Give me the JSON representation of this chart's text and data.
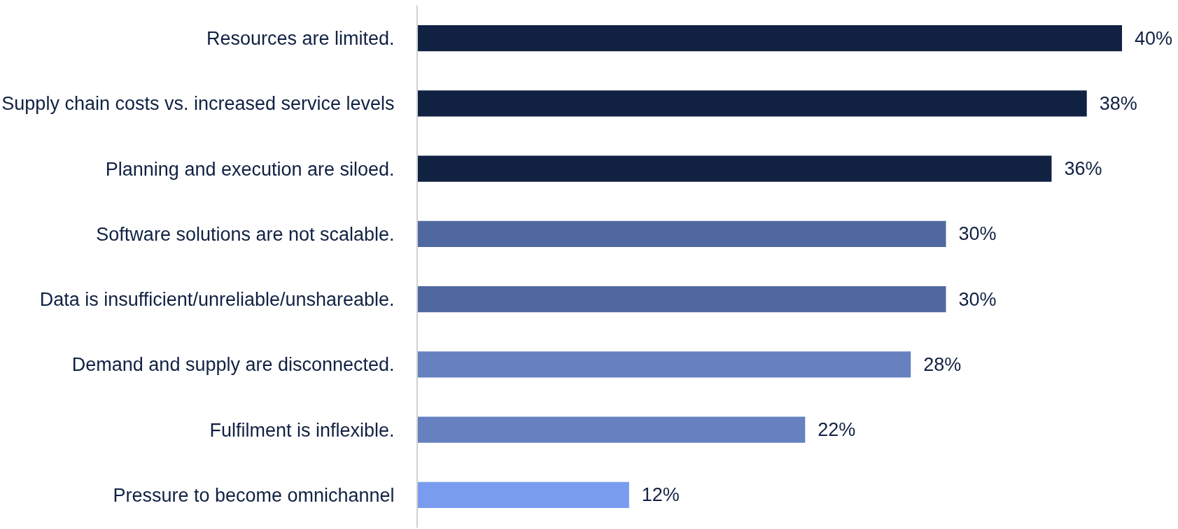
{
  "chart_data": {
    "type": "bar",
    "orientation": "horizontal",
    "categories": [
      "Resources are limited.",
      "Supply chain costs vs. increased service levels",
      "Planning and execution are siloed.",
      "Software solutions are not scalable.",
      "Data is insufficient/unreliable/unshareable.",
      "Demand and supply are disconnected.",
      "Fulfilment is inflexible.",
      "Pressure to become omnichannel"
    ],
    "values": [
      40,
      38,
      36,
      30,
      30,
      28,
      22,
      12
    ],
    "value_labels": [
      "40%",
      "38%",
      "36%",
      "30%",
      "30%",
      "28%",
      "22%",
      "12%"
    ],
    "colors": [
      "#112142",
      "#112142",
      "#112142",
      "#4f69a0",
      "#4f69a0",
      "#6680c0",
      "#6680c0",
      "#7a9cee"
    ]
  }
}
